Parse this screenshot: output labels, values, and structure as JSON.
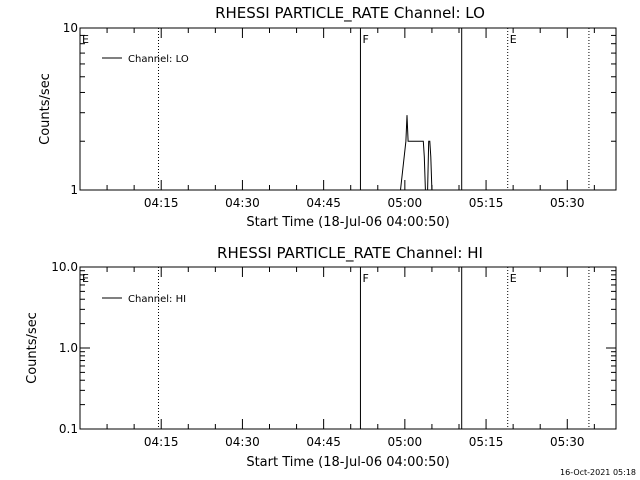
{
  "timestamp": "16-Oct-2021 05:18",
  "chart_data": [
    {
      "type": "line",
      "title": "RHESSI PARTICLE_RATE Channel: LO",
      "xlabel": "Start Time (18-Jul-06 04:00:50)",
      "ylabel": "Counts/sec",
      "y_scale": "log",
      "ylim": [
        1,
        10
      ],
      "y_ticks": [
        {
          "value": 1,
          "label": "1"
        },
        {
          "value": 10,
          "label": "10"
        }
      ],
      "x_ticks": [
        "04:15",
        "04:30",
        "04:45",
        "05:00",
        "05:15",
        "05:30"
      ],
      "xlim_min": [
        0,
        99
      ],
      "x_ticks_min": [
        15,
        30,
        45,
        60,
        75,
        90
      ],
      "legend": {
        "label": "Channel: LO",
        "position": "top-left"
      },
      "markers": [
        {
          "label": "E",
          "x_min": 0,
          "style": "none"
        },
        {
          "label": "",
          "x_min": 14.5,
          "style": "dotted"
        },
        {
          "label": "F",
          "x_min": 51.8,
          "style": "solid"
        },
        {
          "label": "",
          "x_min": 70.5,
          "style": "solid"
        },
        {
          "label": "E",
          "x_min": 79.0,
          "style": "dotted"
        },
        {
          "label": "",
          "x_min": 94.0,
          "style": "dotted"
        }
      ],
      "series": [
        {
          "name": "Channel: LO",
          "x_min": [
            59.2,
            60.2,
            60.4,
            60.6,
            60.8,
            61.2,
            63.4,
            63.6,
            63.8,
            64.2,
            64.4,
            64.6,
            64.8,
            65.0,
            65.2
          ],
          "values": [
            1,
            2,
            2.9,
            2,
            2,
            2,
            2,
            1.6,
            1,
            1,
            2,
            2,
            1.6,
            1,
            1
          ]
        }
      ]
    },
    {
      "type": "line",
      "title": "RHESSI PARTICLE_RATE Channel: HI",
      "xlabel": "Start Time (18-Jul-06 04:00:50)",
      "ylabel": "Counts/sec",
      "y_scale": "log",
      "ylim": [
        0.1,
        10
      ],
      "y_ticks": [
        {
          "value": 0.1,
          "label": "0.1"
        },
        {
          "value": 1,
          "label": "1.0"
        },
        {
          "value": 10,
          "label": "10.0"
        }
      ],
      "x_ticks": [
        "04:15",
        "04:30",
        "04:45",
        "05:00",
        "05:15",
        "05:30"
      ],
      "xlim_min": [
        0,
        99
      ],
      "x_ticks_min": [
        15,
        30,
        45,
        60,
        75,
        90
      ],
      "legend": {
        "label": "Channel: HI",
        "position": "top-left"
      },
      "markers": [
        {
          "label": "E",
          "x_min": 0,
          "style": "none"
        },
        {
          "label": "",
          "x_min": 14.5,
          "style": "dotted"
        },
        {
          "label": "F",
          "x_min": 51.8,
          "style": "solid"
        },
        {
          "label": "",
          "x_min": 70.5,
          "style": "solid"
        },
        {
          "label": "E",
          "x_min": 79.0,
          "style": "dotted"
        },
        {
          "label": "",
          "x_min": 94.0,
          "style": "dotted"
        }
      ],
      "series": [
        {
          "name": "Channel: HI",
          "x_min": [],
          "values": []
        }
      ]
    }
  ]
}
